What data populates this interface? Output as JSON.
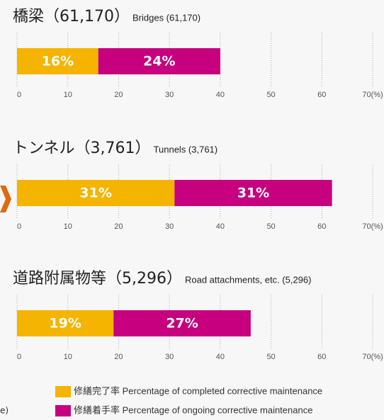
{
  "series": [
    {
      "name": "修繕完了率 Percentage of completed corrective maintenance",
      "color": "#f5b400"
    },
    {
      "name": "修繕着手率 Percentage of ongoing corrective maintenance",
      "color": "#c6007e"
    }
  ],
  "side_note": "e)",
  "chart_data": [
    {
      "type": "bar",
      "orientation": "horizontal",
      "stacked": true,
      "grid": true,
      "title": "橋梁（61,170）",
      "subtitle": "Bridges (61,170)",
      "values": [
        16,
        24
      ],
      "value_labels": [
        "16%",
        "24%"
      ],
      "xlim": [
        0,
        70
      ],
      "xticks": [
        0,
        10,
        20,
        30,
        40,
        50,
        60,
        {
          "value": 70,
          "label": "70(%)"
        }
      ]
    },
    {
      "type": "bar",
      "orientation": "horizontal",
      "stacked": true,
      "grid": true,
      "title": "トンネル（3,761）",
      "subtitle": "Tunnels (3,761)",
      "values": [
        31,
        31
      ],
      "value_labels": [
        "31%",
        "31%"
      ],
      "xlim": [
        0,
        70
      ],
      "xticks": [
        0,
        10,
        20,
        30,
        40,
        50,
        60,
        {
          "value": 70,
          "label": "70(%)"
        }
      ]
    },
    {
      "type": "bar",
      "orientation": "horizontal",
      "stacked": true,
      "grid": true,
      "title": "道路附属物等（5,296）",
      "subtitle": "Road attachments, etc. (5,296)",
      "values": [
        19,
        27
      ],
      "value_labels": [
        "19%",
        "27%"
      ],
      "xlim": [
        0,
        70
      ],
      "xticks": [
        0,
        10,
        20,
        30,
        40,
        50,
        60,
        {
          "value": 70,
          "label": "70(%)"
        }
      ]
    }
  ]
}
